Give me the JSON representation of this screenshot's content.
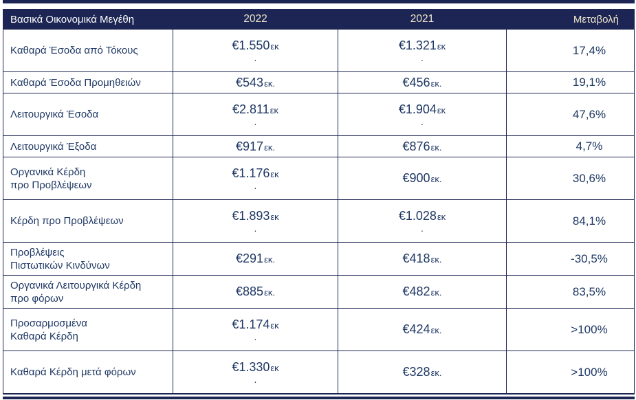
{
  "colors": {
    "navy": "#1C2553",
    "cream": "#EFE8CE",
    "text": "#1F3864"
  },
  "table": {
    "header": {
      "label": "Βασικά Οικονομικά Μεγέθη",
      "col2022": "2022",
      "col2021": "2021",
      "change": "Μεταβολή"
    },
    "rows": [
      {
        "label": "Καθαρά Έσοδα από Τόκους",
        "y2022": {
          "num": "€1.550",
          "unit": "εκ",
          "dot": "."
        },
        "y2021": {
          "num": "€1.321",
          "unit": "εκ",
          "dot": "."
        },
        "change": "17,4%"
      },
      {
        "label": "Καθαρά Έσοδα Προμηθειών",
        "y2022": {
          "num": "€543",
          "unit": "εκ.",
          "dot": ""
        },
        "y2021": {
          "num": "€456",
          "unit": "εκ.",
          "dot": ""
        },
        "change": "19,1%"
      },
      {
        "label": "Λειτουργικά Έσοδα",
        "y2022": {
          "num": "€2.811",
          "unit": "εκ",
          "dot": "."
        },
        "y2021": {
          "num": "€1.904",
          "unit": "εκ",
          "dot": "."
        },
        "change": "47,6%"
      },
      {
        "label": "Λειτουργικά Έξοδα",
        "y2022": {
          "num": "€917",
          "unit": "εκ.",
          "dot": ""
        },
        "y2021": {
          "num": "€876",
          "unit": "εκ.",
          "dot": ""
        },
        "change": "4,7%"
      },
      {
        "label": "Οργανικά Κέρδη\nπρο Προβλέψεων",
        "y2022": {
          "num": "€1.176",
          "unit": "εκ",
          "dot": "."
        },
        "y2021": {
          "num": "€900",
          "unit": "εκ.",
          "dot": ""
        },
        "change": "30,6%"
      },
      {
        "label": "Κέρδη προ Προβλέψεων",
        "y2022": {
          "num": "€1.893",
          "unit": "εκ",
          "dot": "."
        },
        "y2021": {
          "num": "€1.028",
          "unit": "εκ",
          "dot": "."
        },
        "change": "84,1%"
      },
      {
        "label": "Προβλέψεις\nΠιστωτικών Κινδύνων",
        "y2022": {
          "num": "€291",
          "unit": "εκ.",
          "dot": ""
        },
        "y2021": {
          "num": "€418",
          "unit": "εκ.",
          "dot": ""
        },
        "change": "-30,5%"
      },
      {
        "label": "Οργανικά Λειτουργικά Κέρδη\nπρο φόρων",
        "y2022": {
          "num": "€885",
          "unit": "εκ.",
          "dot": ""
        },
        "y2021": {
          "num": "€482",
          "unit": "εκ.",
          "dot": ""
        },
        "change": "83,5%"
      },
      {
        "label": "Προσαρμοσμένα\nΚαθαρά Κέρδη",
        "y2022": {
          "num": "€1.174",
          "unit": "εκ",
          "dot": "."
        },
        "y2021": {
          "num": "€424",
          "unit": "εκ.",
          "dot": ""
        },
        "change": ">100%"
      },
      {
        "label": "Καθαρά Κέρδη μετά φόρων",
        "y2022": {
          "num": "€1.330",
          "unit": "εκ",
          "dot": "."
        },
        "y2021": {
          "num": "€328",
          "unit": "εκ.",
          "dot": ""
        },
        "change": ">100%"
      }
    ]
  },
  "chart_data": {
    "type": "table",
    "title": "Βασικά Οικονομικά Μεγέθη",
    "columns": [
      "Βασικά Οικονομικά Μεγέθη",
      "2022",
      "2021",
      "Μεταβολή"
    ],
    "rows": [
      [
        "Καθαρά Έσοδα από Τόκους",
        "€1.550εκ.",
        "€1.321εκ.",
        "17,4%"
      ],
      [
        "Καθαρά Έσοδα Προμηθειών",
        "€543εκ.",
        "€456εκ.",
        "19,1%"
      ],
      [
        "Λειτουργικά Έσοδα",
        "€2.811εκ.",
        "€1.904εκ.",
        "47,6%"
      ],
      [
        "Λειτουργικά Έξοδα",
        "€917εκ.",
        "€876εκ.",
        "4,7%"
      ],
      [
        "Οργανικά Κέρδη προ Προβλέψεων",
        "€1.176εκ.",
        "€900εκ.",
        "30,6%"
      ],
      [
        "Κέρδη προ Προβλέψεων",
        "€1.893εκ.",
        "€1.028εκ.",
        "84,1%"
      ],
      [
        "Προβλέψεις Πιστωτικών Κινδύνων",
        "€291εκ.",
        "€418εκ.",
        "-30,5%"
      ],
      [
        "Οργανικά Λειτουργικά Κέρδη προ φόρων",
        "€885εκ.",
        "€482εκ.",
        "83,5%"
      ],
      [
        "Προσαρμοσμένα Καθαρά Κέρδη",
        "€1.174εκ.",
        "€424εκ.",
        ">100%"
      ],
      [
        "Καθαρά Κέρδη μετά φόρων",
        "€1.330εκ.",
        "€328εκ.",
        ">100%"
      ]
    ]
  }
}
